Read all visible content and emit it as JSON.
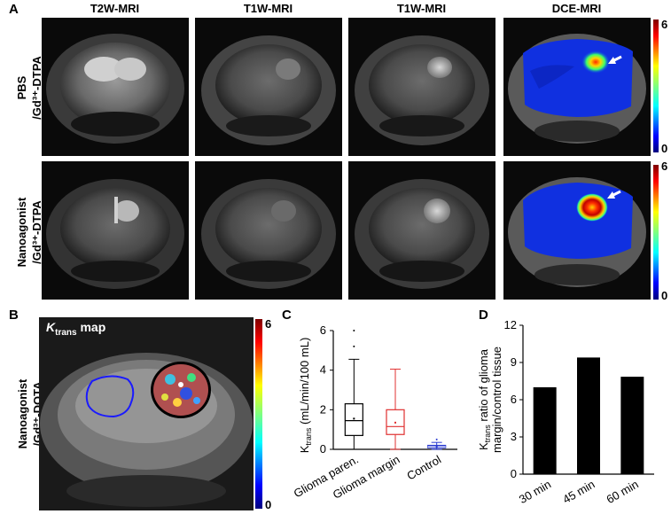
{
  "panel_a": {
    "letter": "A",
    "columns": [
      "T2W-MRI",
      "T1W-MRI",
      "T1W-MRI",
      "DCE-MRI"
    ],
    "rows": [
      {
        "line1": "PBS",
        "line2": "/Gd³⁺-DTPA"
      },
      {
        "line1": "Nanoagonist",
        "line2": "/Gd³⁺-DTPA"
      }
    ],
    "colorbar": {
      "max": "6",
      "min": "0"
    }
  },
  "panel_b": {
    "letter": "B",
    "map_title": "K",
    "map_sub": "trans",
    "map_suffix": " map",
    "row_line1": "Nanoagonist",
    "row_line2": "/Gd³⁺-DOTA",
    "colorbar": {
      "max": "6",
      "min": "0"
    }
  },
  "chart_data": [
    {
      "panel": "C",
      "type": "box",
      "ylabel": "K_trans (mL/min/100 mL)",
      "ylabel_main": "K",
      "ylabel_sub": "trans",
      "ylabel_rest": " (mL/min/100 mL)",
      "ylim": [
        0,
        6
      ],
      "yticks": [
        "0",
        "2",
        "4",
        "6"
      ],
      "categories": [
        "Glioma paren.",
        "Glioma margin",
        "Control"
      ],
      "colors": [
        "#000000",
        "#e03030",
        "#2a3ad0"
      ],
      "boxes": [
        {
          "min": 0.0,
          "q1": 0.7,
          "median": 1.45,
          "q3": 2.3,
          "max": 4.55,
          "mean": 1.55,
          "outliers": [
            5.2,
            6.0
          ]
        },
        {
          "min": 0.0,
          "q1": 0.75,
          "median": 1.15,
          "q3": 2.0,
          "max": 4.05,
          "mean": 1.35,
          "outliers": []
        },
        {
          "min": 0.0,
          "q1": 0.08,
          "median": 0.13,
          "q3": 0.2,
          "max": 0.35,
          "mean": 0.13,
          "outliers": [
            0.5
          ]
        }
      ]
    },
    {
      "panel": "D",
      "type": "bar",
      "ylabel_main": "K",
      "ylabel_sub": "trans",
      "ylabel_rest1": " ratio of glioma",
      "ylabel_line2": "margin/control tissue",
      "ylim": [
        0,
        12
      ],
      "yticks": [
        "0",
        "3",
        "6",
        "9",
        "12"
      ],
      "categories": [
        "30 min",
        "45 min",
        "60 min"
      ],
      "values": [
        7.0,
        9.4,
        7.85
      ]
    }
  ]
}
